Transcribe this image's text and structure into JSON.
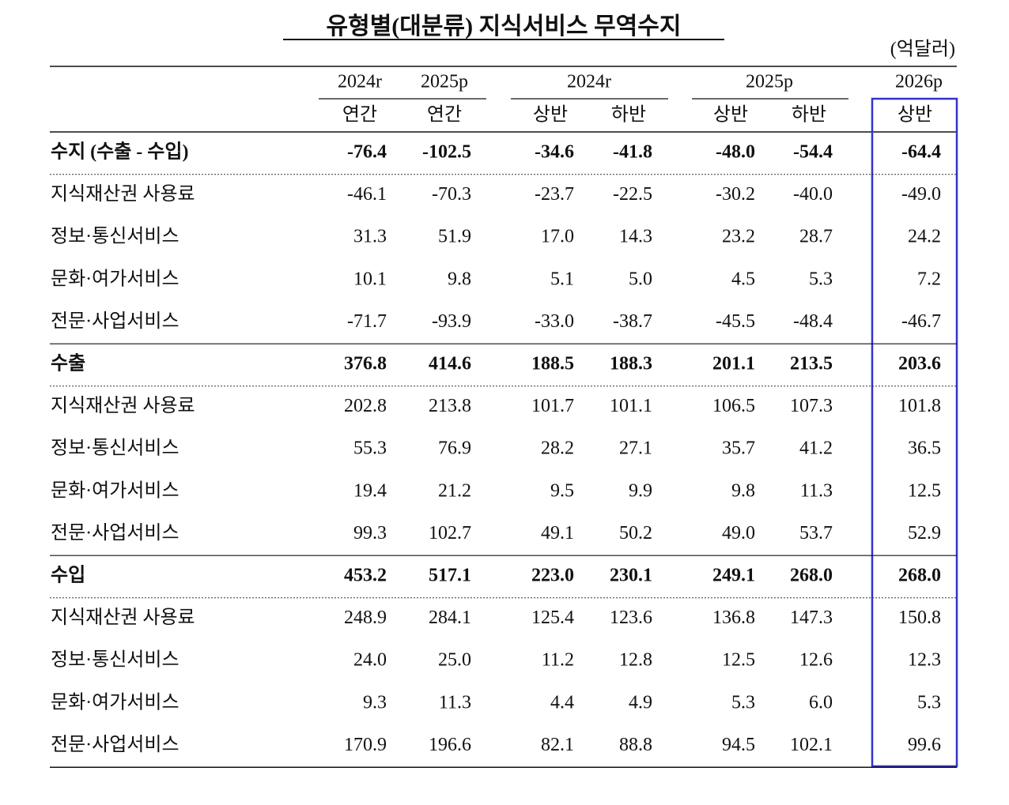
{
  "title": "유형별(대분류) 지식서비스 무역수지",
  "unit": "(억달러)",
  "header": {
    "years": [
      {
        "label": "2024r",
        "subs": [
          "연간"
        ]
      },
      {
        "label": "2025p",
        "subs": [
          "연간"
        ]
      },
      {
        "label": "2024r",
        "subs": [
          "상반",
          "하반"
        ]
      },
      {
        "label": "2025p",
        "subs": [
          "상반",
          "하반"
        ]
      },
      {
        "label": "2026p",
        "subs": [
          "상반"
        ]
      }
    ]
  },
  "sections": [
    {
      "total": {
        "label": "수지 (수출 - 수입)",
        "values": [
          "-76.4",
          "-102.5",
          "-34.6",
          "-41.8",
          "-48.0",
          "-54.4",
          "-64.4"
        ]
      },
      "items": [
        {
          "label": "지식재산권 사용료",
          "values": [
            "-46.1",
            "-70.3",
            "-23.7",
            "-22.5",
            "-30.2",
            "-40.0",
            "-49.0"
          ]
        },
        {
          "label": "정보·통신서비스",
          "values": [
            "31.3",
            "51.9",
            "17.0",
            "14.3",
            "23.2",
            "28.7",
            "24.2"
          ]
        },
        {
          "label": "문화·여가서비스",
          "values": [
            "10.1",
            "9.8",
            "5.1",
            "5.0",
            "4.5",
            "5.3",
            "7.2"
          ]
        },
        {
          "label": "전문·사업서비스",
          "values": [
            "-71.7",
            "-93.9",
            "-33.0",
            "-38.7",
            "-45.5",
            "-48.4",
            "-46.7"
          ]
        }
      ]
    },
    {
      "total": {
        "label": "수출",
        "values": [
          "376.8",
          "414.6",
          "188.5",
          "188.3",
          "201.1",
          "213.5",
          "203.6"
        ]
      },
      "items": [
        {
          "label": "지식재산권 사용료",
          "values": [
            "202.8",
            "213.8",
            "101.7",
            "101.1",
            "106.5",
            "107.3",
            "101.8"
          ]
        },
        {
          "label": "정보·통신서비스",
          "values": [
            "55.3",
            "76.9",
            "28.2",
            "27.1",
            "35.7",
            "41.2",
            "36.5"
          ]
        },
        {
          "label": "문화·여가서비스",
          "values": [
            "19.4",
            "21.2",
            "9.5",
            "9.9",
            "9.8",
            "11.3",
            "12.5"
          ]
        },
        {
          "label": "전문·사업서비스",
          "values": [
            "99.3",
            "102.7",
            "49.1",
            "50.2",
            "49.0",
            "53.7",
            "52.9"
          ]
        }
      ]
    },
    {
      "total": {
        "label": "수입",
        "values": [
          "453.2",
          "517.1",
          "223.0",
          "230.1",
          "249.1",
          "268.0",
          "268.0"
        ]
      },
      "items": [
        {
          "label": "지식재산권 사용료",
          "values": [
            "248.9",
            "284.1",
            "125.4",
            "123.6",
            "136.8",
            "147.3",
            "150.8"
          ]
        },
        {
          "label": "정보·통신서비스",
          "values": [
            "24.0",
            "25.0",
            "11.2",
            "12.8",
            "12.5",
            "12.6",
            "12.3"
          ]
        },
        {
          "label": "문화·여가서비스",
          "values": [
            "9.3",
            "11.3",
            "4.4",
            "4.9",
            "5.3",
            "6.0",
            "5.3"
          ]
        },
        {
          "label": "전문·사업서비스",
          "values": [
            "170.9",
            "196.6",
            "82.1",
            "88.8",
            "94.5",
            "102.1",
            "99.6"
          ]
        }
      ]
    }
  ]
}
